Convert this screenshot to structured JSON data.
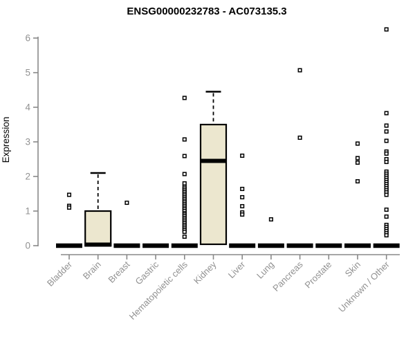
{
  "colors": {
    "background": "#ffffff",
    "box_fill": "#ece7cf",
    "box_stroke": "#000000",
    "median": "#000000",
    "outlier_stroke": "#000000",
    "outlier_fill": "#ffffff",
    "axis": "#888888",
    "tick_label": "#919191",
    "title": "#000000"
  },
  "chart_data": {
    "type": "boxplot",
    "title": "ENSG00000232783 - AC073135.3",
    "xlabel": "",
    "ylabel": "Expression",
    "ylim": [
      0,
      6.4
    ],
    "yticks": [
      0,
      1,
      2,
      3,
      4,
      5,
      6
    ],
    "grid": false,
    "legend": false,
    "categories": [
      "Bladder",
      "Brain",
      "Breast",
      "Gastric",
      "Hematopoietic cells",
      "Kidney",
      "Liver",
      "Lung",
      "Pancreas",
      "Prostate",
      "Skin",
      "Unknown / Other"
    ],
    "boxes": [
      {
        "category": "Bladder",
        "q1": 0,
        "median": 0,
        "q3": 0,
        "whisker_low": 0,
        "whisker_high": 0,
        "outliers": [
          1.47,
          1.15,
          1.1
        ]
      },
      {
        "category": "Brain",
        "q1": 0,
        "median": 0.03,
        "q3": 1.0,
        "whisker_low": 0,
        "whisker_high": 2.1,
        "outliers": []
      },
      {
        "category": "Breast",
        "q1": 0,
        "median": 0,
        "q3": 0,
        "whisker_low": 0,
        "whisker_high": 0,
        "outliers": [
          1.24
        ]
      },
      {
        "category": "Gastric",
        "q1": 0,
        "median": 0,
        "q3": 0,
        "whisker_low": 0,
        "whisker_high": 0,
        "outliers": []
      },
      {
        "category": "Hematopoietic cells",
        "q1": 0,
        "median": 0,
        "q3": 0,
        "whisker_low": 0,
        "whisker_high": 0,
        "outliers": [
          4.27,
          3.07,
          2.59,
          2.07,
          1.8,
          1.7,
          1.65,
          1.6,
          1.55,
          1.5,
          1.45,
          1.4,
          1.35,
          1.3,
          1.25,
          1.2,
          1.15,
          1.1,
          1.05,
          1.0,
          0.94,
          0.9,
          0.85,
          0.8,
          0.75,
          0.7,
          0.65,
          0.6,
          0.55,
          0.5,
          0.45,
          0.4,
          0.26
        ]
      },
      {
        "category": "Kidney",
        "q1": 0.04,
        "median": 2.45,
        "q3": 3.5,
        "whisker_low": 0.04,
        "whisker_high": 4.45,
        "outliers": []
      },
      {
        "category": "Liver",
        "q1": 0,
        "median": 0,
        "q3": 0,
        "whisker_low": 0,
        "whisker_high": 0,
        "outliers": [
          2.6,
          1.64,
          1.4,
          1.14,
          0.96,
          0.9
        ]
      },
      {
        "category": "Lung",
        "q1": 0,
        "median": 0,
        "q3": 0,
        "whisker_low": 0,
        "whisker_high": 0,
        "outliers": [
          0.76
        ]
      },
      {
        "category": "Pancreas",
        "q1": 0,
        "median": 0,
        "q3": 0,
        "whisker_low": 0,
        "whisker_high": 0,
        "outliers": [
          5.07,
          3.12
        ]
      },
      {
        "category": "Prostate",
        "q1": 0,
        "median": 0,
        "q3": 0,
        "whisker_low": 0,
        "whisker_high": 0,
        "outliers": []
      },
      {
        "category": "Skin",
        "q1": 0,
        "median": 0,
        "q3": 0,
        "whisker_low": 0,
        "whisker_high": 0,
        "outliers": [
          2.95,
          2.53,
          2.4,
          1.86
        ]
      },
      {
        "category": "Unknown / Other",
        "q1": 0,
        "median": 0,
        "q3": 0,
        "whisker_low": 0,
        "whisker_high": 0,
        "outliers": [
          6.25,
          3.83,
          3.47,
          3.3,
          3.03,
          2.72,
          2.66,
          2.5,
          2.42,
          2.14,
          2.08,
          2.02,
          1.96,
          1.9,
          1.84,
          1.78,
          1.72,
          1.66,
          1.6,
          1.54,
          1.47,
          1.04,
          0.84,
          0.6,
          0.54,
          0.48,
          0.42,
          0.36,
          0.3
        ]
      }
    ]
  }
}
